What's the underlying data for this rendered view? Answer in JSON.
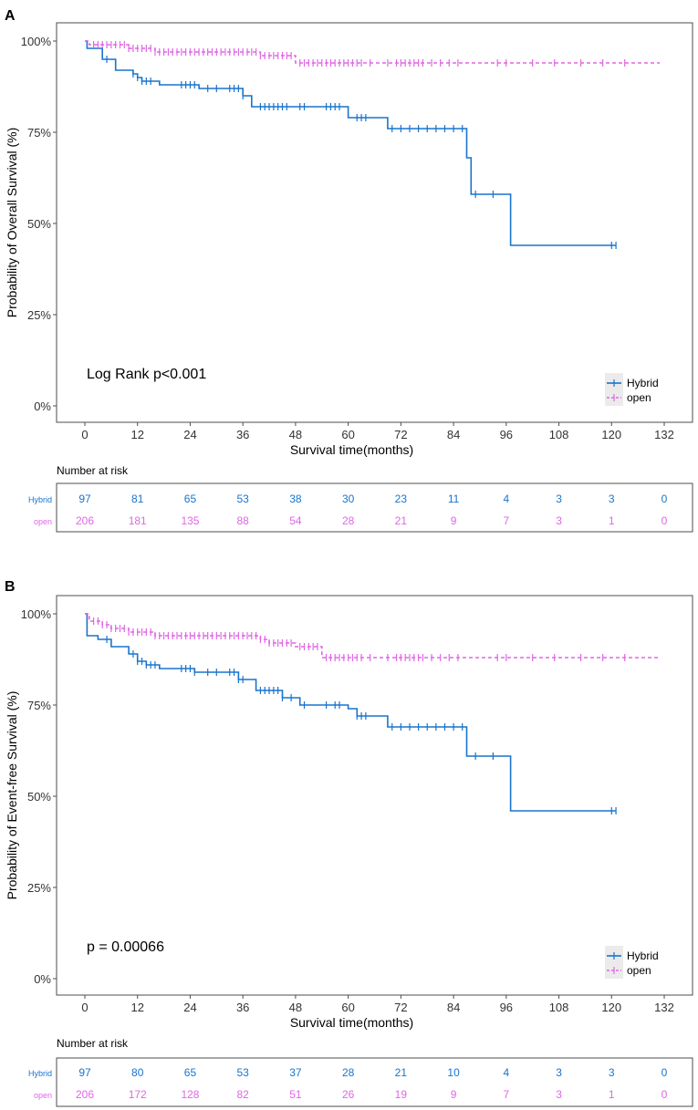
{
  "colors": {
    "hybrid": "#1874cd",
    "open": "#e066e6",
    "axis": "#4d4d4d",
    "text": "#000000"
  },
  "chart_data": [
    {
      "type": "line",
      "chart_kind": "kaplan-meier",
      "panel_label": "A",
      "ylabel": "Probability of Overall Survival (%)",
      "xlabel": "Survival time(months)",
      "xlim": [
        0,
        132
      ],
      "ylim": [
        0,
        100
      ],
      "x_ticks": [
        "0",
        "12",
        "24",
        "36",
        "48",
        "60",
        "72",
        "84",
        "96",
        "108",
        "120",
        "132"
      ],
      "y_ticks": [
        "0%",
        "25%",
        "50%",
        "75%",
        "100%"
      ],
      "annotation": "Log Rank p<0.001",
      "legend": [
        "Hybrid",
        "open"
      ],
      "series": [
        {
          "name": "Hybrid",
          "line": "solid",
          "steps": [
            [
              0,
              100
            ],
            [
              0.5,
              98
            ],
            [
              4,
              95
            ],
            [
              7,
              92
            ],
            [
              11,
              91
            ],
            [
              12,
              90
            ],
            [
              13,
              89
            ],
            [
              17,
              88
            ],
            [
              26,
              87
            ],
            [
              36,
              85
            ],
            [
              38,
              82
            ],
            [
              60,
              79
            ],
            [
              69,
              76
            ],
            [
              87,
              68
            ],
            [
              88,
              58
            ],
            [
              97,
              44
            ],
            [
              121,
              44
            ]
          ],
          "censor_x": [
            5,
            11,
            12,
            13,
            14,
            15,
            22,
            23,
            24,
            25,
            28,
            30,
            33,
            34,
            35,
            36,
            40,
            41,
            42,
            43,
            44,
            45,
            46,
            49,
            50,
            55,
            56,
            57,
            58,
            62,
            63,
            64,
            70,
            72,
            74,
            76,
            78,
            80,
            82,
            84,
            86,
            89,
            93,
            120,
            121
          ]
        },
        {
          "name": "open",
          "line": "dashed",
          "steps": [
            [
              0,
              100
            ],
            [
              1,
              99
            ],
            [
              10,
              98
            ],
            [
              16,
              97
            ],
            [
              40,
              96
            ],
            [
              48,
              94
            ],
            [
              131,
              94
            ]
          ],
          "censor_x": [
            2,
            3,
            4,
            5,
            6,
            7,
            8,
            9,
            10,
            11,
            12,
            13,
            14,
            15,
            16,
            17,
            18,
            19,
            20,
            21,
            22,
            23,
            24,
            25,
            26,
            27,
            28,
            29,
            30,
            31,
            32,
            33,
            34,
            35,
            36,
            37,
            38,
            39,
            40,
            41,
            42,
            43,
            44,
            45,
            46,
            47,
            49,
            50,
            51,
            52,
            53,
            54,
            55,
            56,
            57,
            58,
            59,
            60,
            61,
            62,
            63,
            65,
            69,
            71,
            72,
            73,
            74,
            75,
            76,
            77,
            79,
            81,
            83,
            85,
            94,
            96,
            102,
            107,
            113,
            118,
            123
          ]
        }
      ],
      "risk_table": {
        "title": "Number at risk",
        "rows": [
          {
            "label": "Hybrid",
            "values": [
              "97",
              "81",
              "65",
              "53",
              "38",
              "30",
              "23",
              "11",
              "4",
              "3",
              "3",
              "0"
            ]
          },
          {
            "label": "open",
            "values": [
              "206",
              "181",
              "135",
              "88",
              "54",
              "28",
              "21",
              "9",
              "7",
              "3",
              "1",
              "0"
            ]
          }
        ]
      }
    },
    {
      "type": "line",
      "chart_kind": "kaplan-meier",
      "panel_label": "B",
      "ylabel": "Probability of Event-free Survival (%)",
      "xlabel": "Survival time(months)",
      "xlim": [
        0,
        132
      ],
      "ylim": [
        0,
        100
      ],
      "x_ticks": [
        "0",
        "12",
        "24",
        "36",
        "48",
        "60",
        "72",
        "84",
        "96",
        "108",
        "120",
        "132"
      ],
      "y_ticks": [
        "0%",
        "25%",
        "50%",
        "75%",
        "100%"
      ],
      "annotation": "p = 0.00066",
      "legend": [
        "Hybrid",
        "open"
      ],
      "series": [
        {
          "name": "Hybrid",
          "line": "solid",
          "steps": [
            [
              0,
              100
            ],
            [
              0.5,
              94
            ],
            [
              3,
              93
            ],
            [
              6,
              91
            ],
            [
              10,
              89
            ],
            [
              12,
              87
            ],
            [
              14,
              86
            ],
            [
              17,
              85
            ],
            [
              25,
              84
            ],
            [
              35,
              82
            ],
            [
              39,
              79
            ],
            [
              45,
              77
            ],
            [
              49,
              75
            ],
            [
              60,
              74
            ],
            [
              62,
              72
            ],
            [
              69,
              69
            ],
            [
              87,
              61
            ],
            [
              97,
              46
            ],
            [
              121,
              46
            ]
          ],
          "censor_x": [
            5,
            11,
            12,
            13,
            14,
            15,
            16,
            22,
            23,
            24,
            25,
            28,
            30,
            33,
            34,
            35,
            36,
            40,
            41,
            42,
            43,
            44,
            45,
            47,
            50,
            55,
            57,
            58,
            62,
            63,
            64,
            70,
            72,
            74,
            76,
            78,
            80,
            82,
            84,
            86,
            89,
            93,
            120,
            121
          ]
        },
        {
          "name": "open",
          "line": "dashed",
          "steps": [
            [
              0,
              100
            ],
            [
              1,
              98
            ],
            [
              4,
              97
            ],
            [
              6,
              96
            ],
            [
              10,
              95
            ],
            [
              16,
              94
            ],
            [
              40,
              93
            ],
            [
              42,
              92
            ],
            [
              48,
              91
            ],
            [
              54,
              88
            ],
            [
              131,
              88
            ]
          ],
          "censor_x": [
            2,
            3,
            4,
            5,
            6,
            7,
            8,
            9,
            10,
            11,
            12,
            13,
            14,
            15,
            16,
            17,
            18,
            19,
            20,
            21,
            22,
            23,
            24,
            25,
            26,
            27,
            28,
            29,
            30,
            31,
            32,
            33,
            34,
            35,
            36,
            37,
            38,
            39,
            40,
            41,
            42,
            43,
            44,
            45,
            46,
            47,
            49,
            50,
            51,
            52,
            53,
            55,
            56,
            57,
            58,
            59,
            60,
            61,
            62,
            63,
            65,
            69,
            71,
            72,
            73,
            74,
            75,
            76,
            77,
            79,
            81,
            83,
            85,
            94,
            96,
            102,
            107,
            113,
            118,
            123
          ]
        }
      ],
      "risk_table": {
        "title": "Number at risk",
        "rows": [
          {
            "label": "Hybrid",
            "values": [
              "97",
              "80",
              "65",
              "53",
              "37",
              "28",
              "21",
              "10",
              "4",
              "3",
              "3",
              "0"
            ]
          },
          {
            "label": "open",
            "values": [
              "206",
              "172",
              "128",
              "82",
              "51",
              "26",
              "19",
              "9",
              "7",
              "3",
              "1",
              "0"
            ]
          }
        ]
      }
    }
  ]
}
